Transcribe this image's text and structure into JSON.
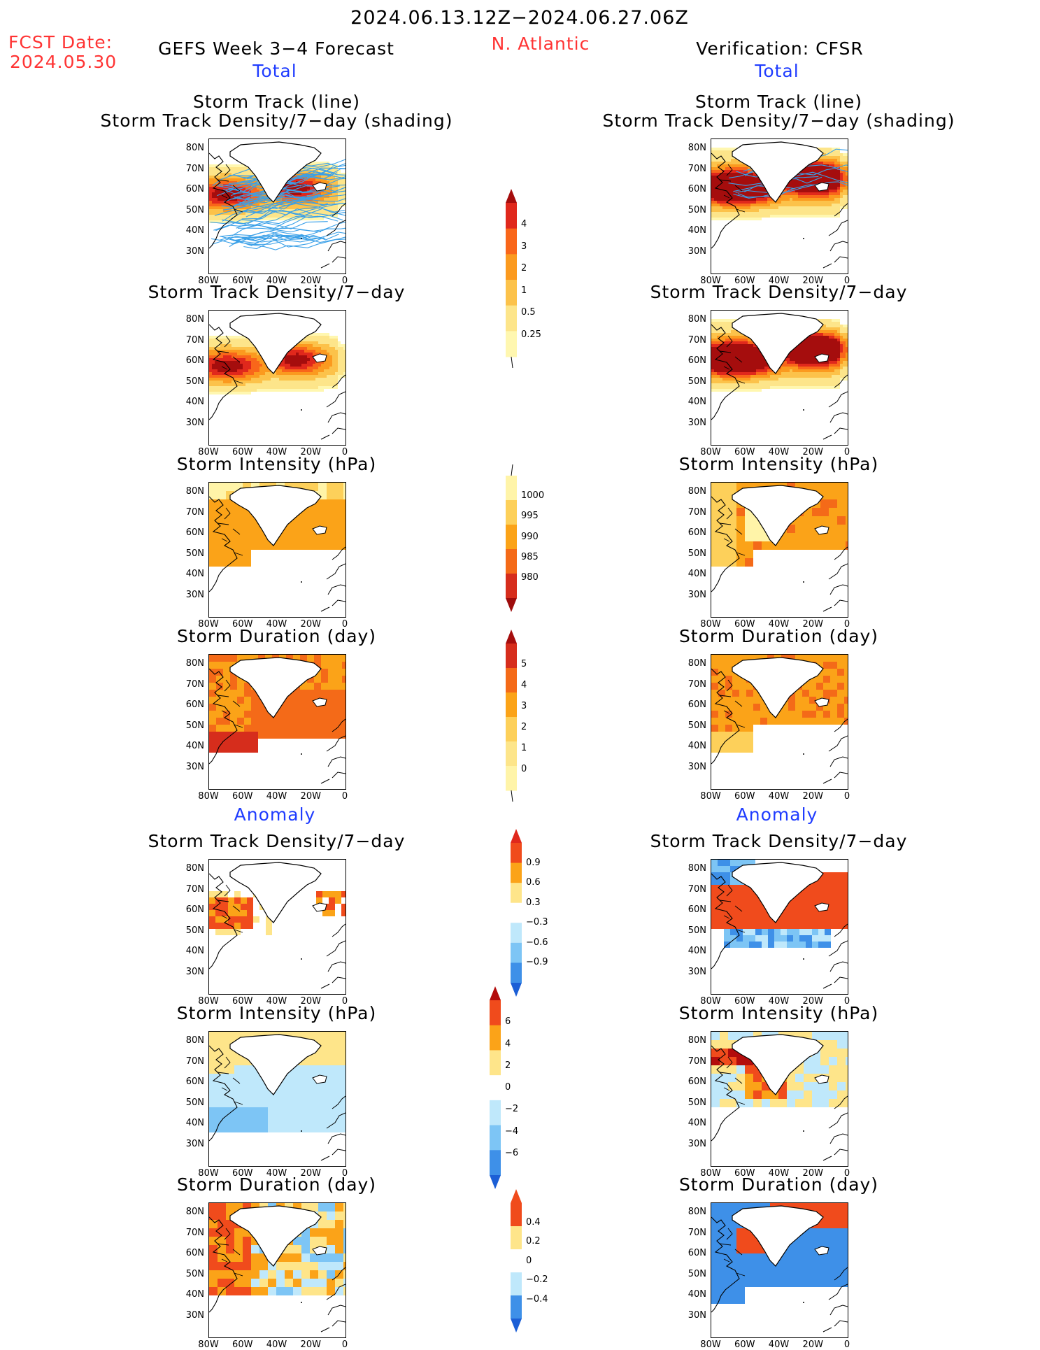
{
  "header": {
    "date_range": "2024.06.13.12Z−2024.06.27.06Z",
    "fcst_label": "FCST Date:",
    "fcst_date": "2024.05.30",
    "left_title": "GEFS Week 3−4 Forecast",
    "region": "N. Atlantic",
    "right_title": "Verification: CFSR",
    "total_label": "Total",
    "anomaly_label": "Anomaly"
  },
  "panels": {
    "track_line": "Storm Track (line)",
    "track_shading": "Storm Track Density/7−day (shading)",
    "density": "Storm Track Density/7−day",
    "intensity": "Storm Intensity (hPa)",
    "duration": "Storm Duration (day)"
  },
  "axes": {
    "lat": [
      "80N",
      "70N",
      "60N",
      "50N",
      "40N",
      "30N"
    ],
    "lon": [
      "80W",
      "60W",
      "40W",
      "20W",
      "0"
    ]
  },
  "colorbars": {
    "density_total": [
      "4",
      "3",
      "2",
      "1",
      "0.5",
      "0.25"
    ],
    "intensity_total": [
      "1000",
      "995",
      "990",
      "985",
      "980"
    ],
    "duration_total": [
      "5",
      "4",
      "3",
      "2",
      "1",
      "0"
    ],
    "density_anom": [
      "0.9",
      "0.6",
      "0.3",
      "−0.3",
      "−0.6",
      "−0.9"
    ],
    "intensity_anom": [
      "6",
      "4",
      "2",
      "0",
      "−2",
      "−4",
      "−6"
    ],
    "duration_anom": [
      "0.4",
      "0.2",
      "0",
      "−0.2",
      "−0.4"
    ]
  },
  "colors": {
    "accent_red": "#ff3333",
    "accent_blue": "#1f3cff",
    "track_line": "#3aa0e8"
  }
}
